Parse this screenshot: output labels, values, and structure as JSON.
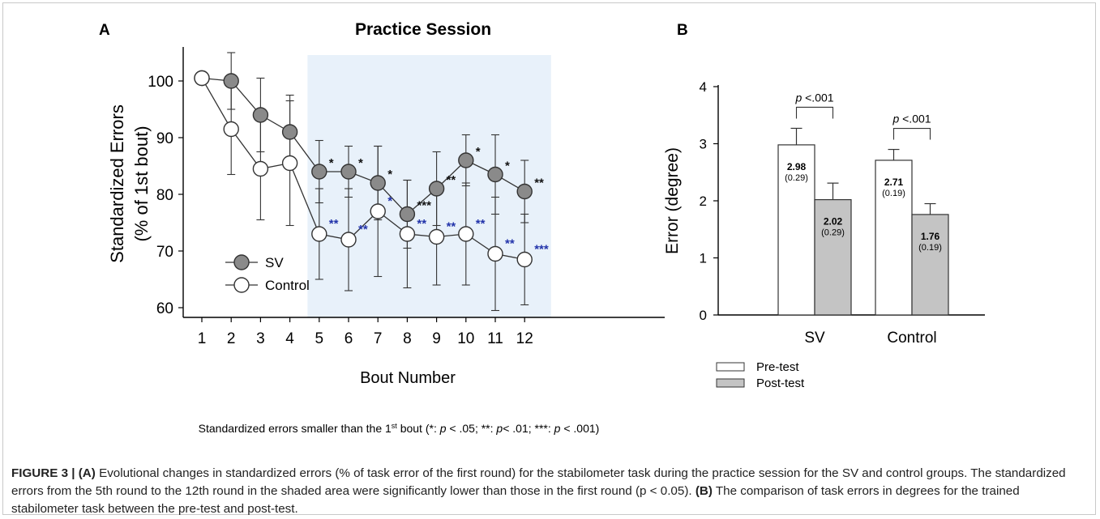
{
  "panel_a": {
    "letter": "A",
    "title": "Practice Session",
    "note": "Standardized errors smaller than the 1st bout (*: p < .05; **: p< .01; ***: p < .001)"
  },
  "panel_b": {
    "letter": "B"
  },
  "caption": {
    "label": "FIGURE 3 |",
    "a_tag": "(A)",
    "a_text": " Evolutional changes in standardized errors (% of task error of the first round) for the stabilometer task during the practice session for the SV and control groups. The standardized errors from the 5th round to the 12th round in the shaded area were significantly lower than those in the first round (p < 0.05). ",
    "b_tag": "(B)",
    "b_text": " The comparison of task errors in degrees for the trained stabilometer task between the pre-test and post-test."
  },
  "colors": {
    "shade": "#e8f1fa",
    "sv_fill": "#8a8a8a",
    "control_fill": "#ffffff",
    "pre_fill": "#ffffff",
    "post_fill": "#c4c4c4",
    "sig_black": "#111111",
    "sig_blue": "#2233aa"
  },
  "chart_data": [
    {
      "type": "line",
      "title": "Practice Session",
      "xlabel": "Bout Number",
      "ylabel": "Standardized Errors (% of 1st bout)",
      "ylim": [
        58,
        105
      ],
      "yticks": [
        60,
        70,
        80,
        90,
        100
      ],
      "x": [
        1,
        2,
        3,
        4,
        5,
        6,
        7,
        8,
        9,
        10,
        11,
        12
      ],
      "shaded_range": [
        4.6,
        12.9
      ],
      "legend_position": "lower-left",
      "series": [
        {
          "name": "SV",
          "marker": "filled-circle",
          "values": [
            100.5,
            100,
            94,
            91,
            84,
            84,
            82,
            76.5,
            81,
            86,
            83.5,
            80.5
          ],
          "errors": [
            0,
            5,
            6.5,
            6.5,
            5.5,
            4.5,
            6.5,
            6,
            6.5,
            4.5,
            7,
            5.5
          ],
          "significance": [
            "",
            "",
            "",
            "",
            "*",
            "*",
            "*",
            "***",
            "**",
            "*",
            "*",
            "**"
          ]
        },
        {
          "name": "Control",
          "marker": "open-circle",
          "values": [
            100.5,
            91.5,
            84.5,
            85.5,
            73,
            72,
            77,
            73,
            72.5,
            73,
            69.5,
            68.5
          ],
          "errors": [
            0,
            8,
            9,
            11,
            8,
            9,
            11.5,
            9.5,
            8.5,
            9,
            10,
            8
          ],
          "significance": [
            "",
            "",
            "",
            "",
            "**",
            "**",
            "*",
            "**",
            "**",
            "**",
            "**",
            "***"
          ]
        }
      ]
    },
    {
      "type": "bar",
      "ylabel": "Error (degree)",
      "ylim": [
        0,
        4
      ],
      "yticks": [
        0,
        1,
        2,
        3,
        4
      ],
      "categories": [
        "SV",
        "Control"
      ],
      "legend_position": "bottom-left",
      "series": [
        {
          "name": "Pre-test",
          "values": [
            2.98,
            2.71
          ],
          "sd": [
            "(0.29)",
            "(0.19)"
          ],
          "errors": [
            0.29,
            0.19
          ]
        },
        {
          "name": "Post-test",
          "values": [
            2.02,
            1.76
          ],
          "sd": [
            "(0.29)",
            "(0.19)"
          ],
          "errors": [
            0.29,
            0.19
          ]
        }
      ],
      "comparisons": [
        "p <.001",
        "p <.001"
      ]
    }
  ]
}
